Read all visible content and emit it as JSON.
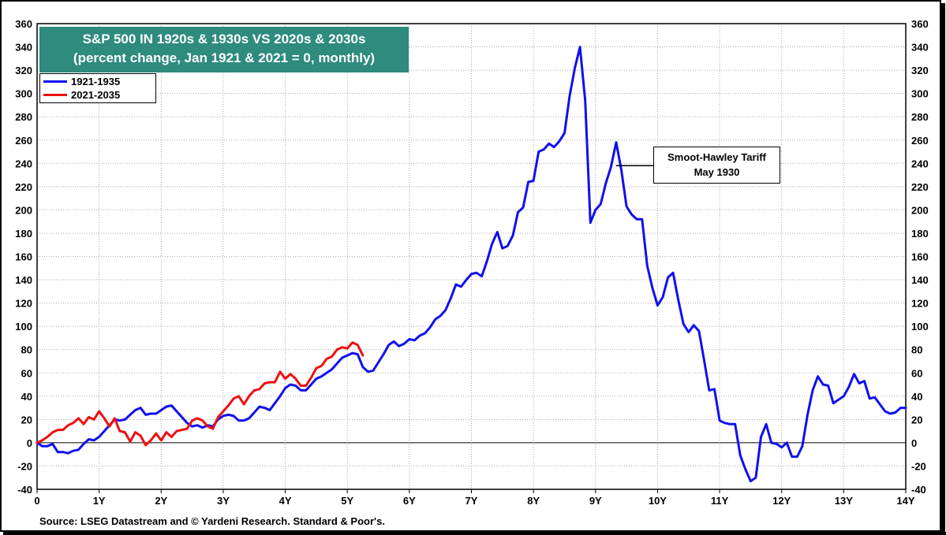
{
  "chart_data": {
    "type": "line",
    "title": "S&P 500 IN 1920s & 1930s VS 2020s & 2030s",
    "subtitle": "(percent change, Jan 1921 & 2021 = 0, monthly)",
    "xlabel": "",
    "ylabel": "",
    "xlim": [
      0,
      14
    ],
    "ylim": [
      -40,
      360
    ],
    "x_ticks": [
      "0",
      "1Y",
      "2Y",
      "3Y",
      "4Y",
      "5Y",
      "6Y",
      "7Y",
      "8Y",
      "9Y",
      "10Y",
      "11Y",
      "12Y",
      "13Y",
      "14Y"
    ],
    "y_ticks": [
      -40,
      -20,
      0,
      20,
      40,
      60,
      80,
      100,
      120,
      140,
      160,
      180,
      200,
      220,
      240,
      260,
      280,
      300,
      320,
      340,
      360
    ],
    "grid": true,
    "legend_position": "top-left",
    "annotation": {
      "line1": "Smoot-Hawley Tariff",
      "line2": "May 1930",
      "x": 9.33,
      "y": 238
    },
    "source": "Source: LSEG Datastream and © Yardeni Research. Standard & Poor's.",
    "series": [
      {
        "name": "1921-1935",
        "color": "#1010ee",
        "points": [
          [
            0,
            0
          ],
          [
            0.083,
            -3
          ],
          [
            0.167,
            -3
          ],
          [
            0.25,
            -1
          ],
          [
            0.333,
            -8
          ],
          [
            0.417,
            -8
          ],
          [
            0.5,
            -9
          ],
          [
            0.583,
            -7
          ],
          [
            0.667,
            -6
          ],
          [
            0.75,
            -1
          ],
          [
            0.833,
            3
          ],
          [
            0.917,
            2
          ],
          [
            1.0,
            5
          ],
          [
            1.083,
            10
          ],
          [
            1.167,
            15
          ],
          [
            1.25,
            20
          ],
          [
            1.333,
            19
          ],
          [
            1.417,
            20
          ],
          [
            1.5,
            24
          ],
          [
            1.583,
            28
          ],
          [
            1.667,
            30
          ],
          [
            1.75,
            24
          ],
          [
            1.833,
            25
          ],
          [
            1.917,
            25
          ],
          [
            2.0,
            28
          ],
          [
            2.083,
            31
          ],
          [
            2.167,
            32
          ],
          [
            2.25,
            27
          ],
          [
            2.333,
            22
          ],
          [
            2.417,
            17
          ],
          [
            2.5,
            14
          ],
          [
            2.583,
            15
          ],
          [
            2.667,
            13
          ],
          [
            2.75,
            15
          ],
          [
            2.833,
            14
          ],
          [
            2.917,
            20
          ],
          [
            3.0,
            23
          ],
          [
            3.083,
            24
          ],
          [
            3.167,
            23
          ],
          [
            3.25,
            19
          ],
          [
            3.333,
            19
          ],
          [
            3.417,
            21
          ],
          [
            3.5,
            26
          ],
          [
            3.583,
            31
          ],
          [
            3.667,
            30
          ],
          [
            3.75,
            28
          ],
          [
            3.833,
            34
          ],
          [
            3.917,
            40
          ],
          [
            4.0,
            47
          ],
          [
            4.083,
            50
          ],
          [
            4.167,
            49
          ],
          [
            4.25,
            45
          ],
          [
            4.333,
            45
          ],
          [
            4.417,
            50
          ],
          [
            4.5,
            55
          ],
          [
            4.583,
            57
          ],
          [
            4.667,
            60
          ],
          [
            4.75,
            63
          ],
          [
            4.833,
            68
          ],
          [
            4.917,
            73
          ],
          [
            5.0,
            75
          ],
          [
            5.083,
            77
          ],
          [
            5.167,
            76
          ],
          [
            5.25,
            65
          ],
          [
            5.333,
            61
          ],
          [
            5.417,
            62
          ],
          [
            5.5,
            69
          ],
          [
            5.583,
            76
          ],
          [
            5.667,
            84
          ],
          [
            5.75,
            87
          ],
          [
            5.833,
            83
          ],
          [
            5.917,
            85
          ],
          [
            6.0,
            89
          ],
          [
            6.083,
            88
          ],
          [
            6.167,
            92
          ],
          [
            6.25,
            94
          ],
          [
            6.333,
            99
          ],
          [
            6.417,
            106
          ],
          [
            6.5,
            109
          ],
          [
            6.583,
            114
          ],
          [
            6.667,
            124
          ],
          [
            6.75,
            136
          ],
          [
            6.833,
            134
          ],
          [
            6.917,
            140
          ],
          [
            7.0,
            145
          ],
          [
            7.083,
            146
          ],
          [
            7.167,
            143
          ],
          [
            7.25,
            156
          ],
          [
            7.333,
            171
          ],
          [
            7.417,
            181
          ],
          [
            7.5,
            167
          ],
          [
            7.583,
            169
          ],
          [
            7.667,
            178
          ],
          [
            7.75,
            198
          ],
          [
            7.833,
            202
          ],
          [
            7.917,
            224
          ],
          [
            8.0,
            225
          ],
          [
            8.083,
            250
          ],
          [
            8.167,
            252
          ],
          [
            8.25,
            257
          ],
          [
            8.333,
            254
          ],
          [
            8.417,
            259
          ],
          [
            8.5,
            266
          ],
          [
            8.583,
            298
          ],
          [
            8.667,
            322
          ],
          [
            8.75,
            340
          ],
          [
            8.833,
            294
          ],
          [
            8.917,
            189
          ],
          [
            9.0,
            200
          ],
          [
            9.083,
            205
          ],
          [
            9.167,
            223
          ],
          [
            9.25,
            237
          ],
          [
            9.333,
            258
          ],
          [
            9.417,
            234
          ],
          [
            9.5,
            203
          ],
          [
            9.583,
            196
          ],
          [
            9.667,
            192
          ],
          [
            9.75,
            192
          ],
          [
            9.833,
            152
          ],
          [
            9.917,
            133
          ],
          [
            10.0,
            118
          ],
          [
            10.083,
            125
          ],
          [
            10.167,
            142
          ],
          [
            10.25,
            146
          ],
          [
            10.333,
            123
          ],
          [
            10.417,
            102
          ],
          [
            10.5,
            95
          ],
          [
            10.583,
            101
          ],
          [
            10.667,
            96
          ],
          [
            10.75,
            71
          ],
          [
            10.833,
            45
          ],
          [
            10.917,
            46
          ],
          [
            11.0,
            19
          ],
          [
            11.083,
            17
          ],
          [
            11.167,
            16
          ],
          [
            11.25,
            16
          ],
          [
            11.333,
            -11
          ],
          [
            11.417,
            -23
          ],
          [
            11.5,
            -33
          ],
          [
            11.583,
            -30
          ],
          [
            11.667,
            5
          ],
          [
            11.75,
            16
          ],
          [
            11.833,
            0
          ],
          [
            11.917,
            -1
          ],
          [
            12.0,
            -4
          ],
          [
            12.083,
            0
          ],
          [
            12.167,
            -12
          ],
          [
            12.25,
            -12
          ],
          [
            12.333,
            -3
          ],
          [
            12.417,
            24
          ],
          [
            12.5,
            45
          ],
          [
            12.583,
            57
          ],
          [
            12.667,
            50
          ],
          [
            12.75,
            49
          ],
          [
            12.833,
            34
          ],
          [
            12.917,
            37
          ],
          [
            13.0,
            40
          ],
          [
            13.083,
            48
          ],
          [
            13.167,
            59
          ],
          [
            13.25,
            51
          ],
          [
            13.333,
            53
          ],
          [
            13.417,
            38
          ],
          [
            13.5,
            39
          ],
          [
            13.583,
            33
          ],
          [
            13.667,
            27
          ],
          [
            13.75,
            25
          ],
          [
            13.833,
            26
          ],
          [
            13.917,
            30
          ],
          [
            14.0,
            30
          ]
        ]
      },
      {
        "name": "2021-2035",
        "color": "#ee1010",
        "points": [
          [
            0,
            0
          ],
          [
            0.083,
            2
          ],
          [
            0.167,
            5
          ],
          [
            0.25,
            9
          ],
          [
            0.333,
            11
          ],
          [
            0.417,
            11
          ],
          [
            0.5,
            15
          ],
          [
            0.583,
            17
          ],
          [
            0.667,
            21
          ],
          [
            0.75,
            16
          ],
          [
            0.833,
            22
          ],
          [
            0.917,
            20
          ],
          [
            1.0,
            27
          ],
          [
            1.083,
            21
          ],
          [
            1.167,
            14
          ],
          [
            1.25,
            21
          ],
          [
            1.333,
            10
          ],
          [
            1.417,
            9
          ],
          [
            1.5,
            1
          ],
          [
            1.583,
            9
          ],
          [
            1.667,
            6
          ],
          [
            1.75,
            -2
          ],
          [
            1.833,
            2
          ],
          [
            1.917,
            8
          ],
          [
            2.0,
            2
          ],
          [
            2.083,
            9
          ],
          [
            2.167,
            5
          ],
          [
            2.25,
            10
          ],
          [
            2.333,
            11
          ],
          [
            2.417,
            12
          ],
          [
            2.5,
            19
          ],
          [
            2.583,
            21
          ],
          [
            2.667,
            19
          ],
          [
            2.75,
            14
          ],
          [
            2.833,
            12
          ],
          [
            2.917,
            22
          ],
          [
            3.0,
            27
          ],
          [
            3.083,
            32
          ],
          [
            3.167,
            38
          ],
          [
            3.25,
            40
          ],
          [
            3.333,
            33
          ],
          [
            3.417,
            40
          ],
          [
            3.5,
            45
          ],
          [
            3.583,
            46
          ],
          [
            3.667,
            51
          ],
          [
            3.75,
            52
          ],
          [
            3.833,
            52
          ],
          [
            3.917,
            61
          ],
          [
            4.0,
            55
          ],
          [
            4.083,
            59
          ],
          [
            4.167,
            55
          ],
          [
            4.25,
            49
          ],
          [
            4.333,
            49
          ],
          [
            4.417,
            56
          ],
          [
            4.5,
            64
          ],
          [
            4.583,
            66
          ],
          [
            4.667,
            72
          ],
          [
            4.75,
            74
          ],
          [
            4.833,
            80
          ],
          [
            4.917,
            82
          ],
          [
            5.0,
            81
          ],
          [
            5.083,
            86
          ],
          [
            5.167,
            84
          ],
          [
            5.25,
            75
          ]
        ]
      }
    ]
  },
  "legend": {
    "items": [
      {
        "label": "1921-1935",
        "color": "#1010ee"
      },
      {
        "label": "2021-2035",
        "color": "#ee1010"
      }
    ]
  }
}
